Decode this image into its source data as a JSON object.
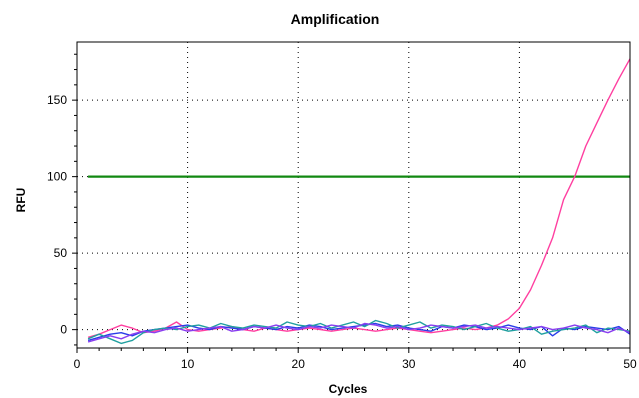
{
  "chart_data": {
    "type": "line",
    "title": "Amplification",
    "xlabel": "Cycles",
    "ylabel": "RFU",
    "xlim": [
      0,
      50
    ],
    "ylim": [
      -12,
      188
    ],
    "xticks": [
      0,
      10,
      20,
      30,
      40,
      50
    ],
    "yticks": [
      0,
      50,
      100,
      150
    ],
    "grid": true,
    "threshold": {
      "value": 100,
      "color": "#118811"
    },
    "x": [
      1,
      2,
      3,
      4,
      5,
      6,
      7,
      8,
      9,
      10,
      11,
      12,
      13,
      14,
      15,
      16,
      17,
      18,
      19,
      20,
      21,
      22,
      23,
      24,
      25,
      26,
      27,
      28,
      29,
      30,
      31,
      32,
      33,
      34,
      35,
      36,
      37,
      38,
      39,
      40,
      41,
      42,
      43,
      44,
      45,
      46,
      47,
      48,
      49,
      50
    ],
    "series": [
      {
        "color": "#ff3fa0",
        "values": [
          -5,
          -3,
          0,
          3,
          1,
          -2,
          -1,
          1,
          5,
          0,
          -1,
          0,
          1,
          2,
          0,
          -1,
          1,
          0,
          -1,
          0,
          1,
          0,
          -1,
          0,
          1,
          0,
          -1,
          0,
          1,
          0,
          -1,
          -2,
          -1,
          0,
          1,
          0,
          1,
          3,
          7,
          14,
          26,
          42,
          60,
          85,
          100,
          120,
          135,
          150,
          164,
          177
        ]
      },
      {
        "color": "#2a3de8",
        "values": [
          -7,
          -5,
          -3,
          -2,
          -4,
          -1,
          0,
          1,
          2,
          3,
          1,
          0,
          2,
          1,
          0,
          2,
          1,
          0,
          2,
          1,
          3,
          2,
          0,
          1,
          2,
          3,
          4,
          2,
          3,
          1,
          0,
          -1,
          2,
          1,
          3,
          2,
          0,
          1,
          3,
          1,
          0,
          2,
          -4,
          1,
          0,
          2,
          1,
          0,
          2,
          -3
        ]
      },
      {
        "color": "#20a0a0",
        "values": [
          -6,
          -3,
          -6,
          -9,
          -7,
          -2,
          0,
          1,
          0,
          2,
          3,
          1,
          4,
          2,
          1,
          3,
          2,
          1,
          5,
          3,
          2,
          4,
          1,
          3,
          5,
          2,
          6,
          4,
          1,
          3,
          5,
          1,
          3,
          2,
          0,
          2,
          4,
          1,
          -1,
          0,
          2,
          -3,
          -1,
          0,
          1,
          3,
          -2,
          1,
          0,
          -1
        ]
      },
      {
        "color": "#8a3ef0",
        "values": [
          -8,
          -6,
          -4,
          -6,
          -3,
          -1,
          -2,
          0,
          1,
          -1,
          0,
          1,
          2,
          -1,
          0,
          2,
          1,
          3,
          1,
          0,
          2,
          1,
          3,
          2,
          1,
          4,
          3,
          1,
          2,
          0,
          1,
          3,
          2,
          1,
          2,
          3,
          1,
          2,
          1,
          0,
          1,
          2,
          0,
          1,
          3,
          1,
          0,
          -2,
          1,
          -2
        ]
      }
    ]
  }
}
